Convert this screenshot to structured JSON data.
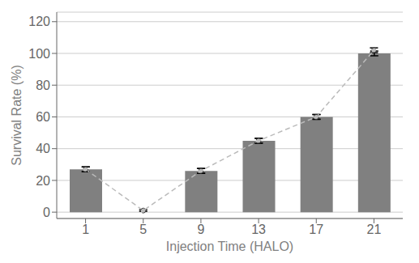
{
  "chart_data": {
    "type": "bar",
    "x_label": "Injection Time (HALO)",
    "y_label": "Survival Rate (%)",
    "categories": [
      1,
      5,
      9,
      13,
      17,
      21
    ],
    "series": [
      {
        "type": "bar",
        "color": "#808080",
        "values": [
          27,
          0,
          26,
          45,
          60,
          100
        ],
        "errors": [
          1.5,
          0,
          1.5,
          1.5,
          1.5,
          1.5
        ]
      },
      {
        "type": "line",
        "color": "#bbbbbb",
        "line_style": "dashed",
        "marker": "circle",
        "values": [
          27,
          1,
          26,
          45,
          60,
          102
        ],
        "errors": [
          1.5,
          0.5,
          1.5,
          1.5,
          1.5,
          1.5
        ]
      }
    ],
    "ylim": [
      -4,
      126
    ],
    "yticks": [
      0,
      20,
      40,
      60,
      80,
      100,
      120
    ],
    "grid": true
  }
}
